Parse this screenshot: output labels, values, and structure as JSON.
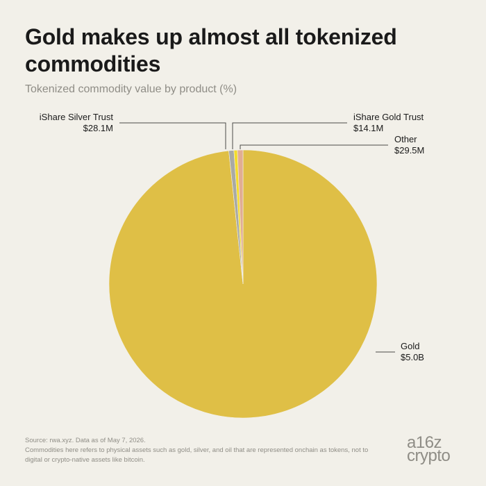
{
  "title": "Gold makes up almost all tokenized commodities",
  "subtitle": "Tokenized commodity value by product (%)",
  "footer": {
    "source": "Source: rwa.xyz. Data as of May 7, 2026.",
    "note": "Commodities here refers to physical assets such as gold, silver, and oil that are represented onchain as tokens, not to digital or crypto-native assets like bitcoin."
  },
  "logo": {
    "line1": "a16z",
    "line2": "crypto"
  },
  "chart_data": {
    "type": "pie",
    "title": "Gold makes up almost all tokenized commodities",
    "subtitle": "Tokenized commodity value by product (%)",
    "slices": [
      {
        "name": "Gold",
        "value": 5000,
        "label": "$5.0B",
        "color": "#dfbf46"
      },
      {
        "name": "iShare Silver Trust",
        "value": 28.1,
        "label": "$28.1M",
        "color": "#a9aaa4"
      },
      {
        "name": "iShare Gold Trust",
        "value": 14.1,
        "label": "$14.1M",
        "color": "#f4dc2c"
      },
      {
        "name": "Other",
        "value": 29.5,
        "label": "$29.5M",
        "color": "#e1ad93"
      }
    ],
    "value_unit": "USD millions"
  }
}
